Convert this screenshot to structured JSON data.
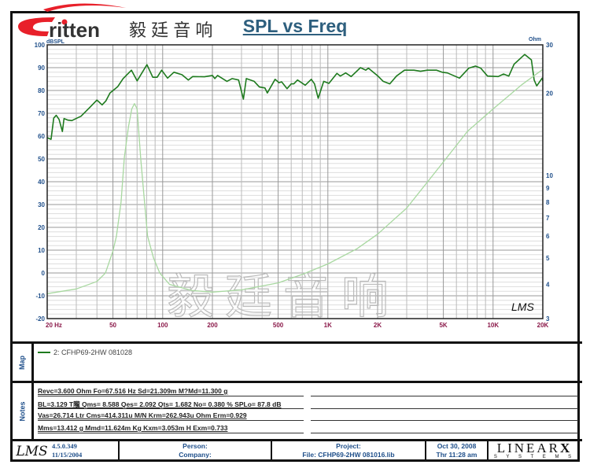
{
  "logo": {
    "brand": "ritten",
    "chinese": "毅 廷 音 响",
    "accent": "#e8202a"
  },
  "watermark": "毅廷音响",
  "title": "SPL vs Freq",
  "chart_data": {
    "type": "line",
    "title": "SPL vs Freq",
    "xscale": "log",
    "xlim": [
      20,
      20000
    ],
    "x_ticks": [
      "20  Hz",
      "50",
      "100",
      "200",
      "500",
      "1K",
      "2K",
      "5K",
      "10K",
      "20K"
    ],
    "x_tick_values": [
      20,
      50,
      100,
      200,
      500,
      1000,
      2000,
      5000,
      10000,
      20000
    ],
    "y_left": {
      "label": "dBSPL",
      "ylim": [
        -20,
        100
      ],
      "ticks": [
        100,
        90,
        80,
        70,
        60,
        50,
        40,
        30,
        20,
        10,
        0,
        -10,
        -20
      ]
    },
    "y_right": {
      "label": "Ohm",
      "scale": "log",
      "ylim": [
        3,
        30
      ],
      "ticks": [
        30,
        20,
        10,
        9,
        8,
        7,
        6,
        5,
        4,
        3
      ]
    },
    "grid": true,
    "series": [
      {
        "axis": "left",
        "color": "#1e7a1e",
        "points": [
          [
            20,
            59.3
          ],
          [
            21.1,
            58.6
          ],
          [
            21.9,
            67.9
          ],
          [
            22.7,
            69.1
          ],
          [
            23.6,
            67.3
          ],
          [
            24.7,
            62
          ],
          [
            25.3,
            67.7
          ],
          [
            26.7,
            67
          ],
          [
            28.2,
            66.8
          ],
          [
            30.5,
            68
          ],
          [
            32,
            68.7
          ],
          [
            35.9,
            72.3
          ],
          [
            40,
            75.8
          ],
          [
            43,
            73.7
          ],
          [
            45.3,
            75.4
          ],
          [
            48,
            78.9
          ],
          [
            53.5,
            81.7
          ],
          [
            57.6,
            85.2
          ],
          [
            64.7,
            88.9
          ],
          [
            70,
            84.2
          ],
          [
            80.3,
            91.3
          ],
          [
            87.1,
            85.8
          ],
          [
            92.6,
            85.8
          ],
          [
            98.6,
            88.9
          ],
          [
            107,
            85.4
          ],
          [
            117,
            88
          ],
          [
            131,
            86.9
          ],
          [
            143,
            84.6
          ],
          [
            152,
            86.1
          ],
          [
            179,
            86
          ],
          [
            200,
            86.6
          ],
          [
            207,
            85.2
          ],
          [
            215,
            86.6
          ],
          [
            245,
            84
          ],
          [
            263,
            85.2
          ],
          [
            288,
            84.6
          ],
          [
            308,
            76.2
          ],
          [
            321,
            85.2
          ],
          [
            358,
            84
          ],
          [
            385,
            81.5
          ],
          [
            416,
            81.1
          ],
          [
            430,
            78.9
          ],
          [
            479,
            84.9
          ],
          [
            506,
            83.4
          ],
          [
            525,
            83.8
          ],
          [
            566,
            80.8
          ],
          [
            600,
            82.9
          ],
          [
            622,
            82.9
          ],
          [
            655,
            84.6
          ],
          [
            729,
            82.3
          ],
          [
            794,
            84.9
          ],
          [
            830,
            82.9
          ],
          [
            874,
            76.6
          ],
          [
            944,
            84
          ],
          [
            1015,
            83.1
          ],
          [
            1134,
            87.5
          ],
          [
            1190,
            86.3
          ],
          [
            1282,
            87.7
          ],
          [
            1384,
            86.1
          ],
          [
            1574,
            90
          ],
          [
            1695,
            88.9
          ],
          [
            1760,
            89.8
          ],
          [
            2010,
            86.3
          ],
          [
            2163,
            84
          ],
          [
            2370,
            82.9
          ],
          [
            2602,
            86.3
          ],
          [
            2909,
            88.9
          ],
          [
            3320,
            88.9
          ],
          [
            3641,
            88.4
          ],
          [
            3997,
            88.9
          ],
          [
            4557,
            88.9
          ],
          [
            4910,
            88
          ],
          [
            5290,
            87.7
          ],
          [
            6262,
            85.4
          ],
          [
            7135,
            89.8
          ],
          [
            7820,
            90.7
          ],
          [
            8420,
            89.8
          ],
          [
            9250,
            86.3
          ],
          [
            10740,
            86.1
          ],
          [
            11570,
            87.2
          ],
          [
            12460,
            86.3
          ],
          [
            13400,
            91.5
          ],
          [
            15540,
            95.8
          ],
          [
            17060,
            93.4
          ],
          [
            17720,
            84.6
          ],
          [
            18390,
            82
          ],
          [
            19820,
            85.4
          ],
          [
            20000,
            84.2
          ]
        ]
      },
      {
        "axis": "right",
        "color": "#a8d8a0",
        "points": [
          [
            20,
            3.7
          ],
          [
            30,
            3.85
          ],
          [
            40,
            4.1
          ],
          [
            45,
            4.4
          ],
          [
            50,
            5.3
          ],
          [
            52.5,
            6
          ],
          [
            56,
            8
          ],
          [
            58.6,
            11.6
          ],
          [
            62,
            15
          ],
          [
            65,
            17.5
          ],
          [
            67.5,
            18.3
          ],
          [
            70,
            17.5
          ],
          [
            73.6,
            11.6
          ],
          [
            77,
            8.5
          ],
          [
            81,
            6
          ],
          [
            88,
            5
          ],
          [
            96,
            4.4
          ],
          [
            110,
            4.0
          ],
          [
            150,
            3.8
          ],
          [
            200,
            3.75
          ],
          [
            300,
            3.82
          ],
          [
            500,
            4.05
          ],
          [
            700,
            4.35
          ],
          [
            1000,
            4.75
          ],
          [
            1500,
            5.4
          ],
          [
            2000,
            6.1
          ],
          [
            3000,
            7.6
          ],
          [
            5000,
            11.2
          ],
          [
            7000,
            14.5
          ],
          [
            10000,
            17.5
          ],
          [
            15000,
            21.5
          ],
          [
            20000,
            24.4
          ]
        ]
      }
    ]
  },
  "chart_mark": "LMS",
  "map": {
    "label": "Map",
    "legend": "2: CFHP69-2HW    081028"
  },
  "notes": {
    "label": "Notes",
    "lines": [
      "Revc=3.600 Ohm  Fo=67.516 Hz  Sd=21.309m M?Md=11.300 g",
      "BL=3.129 T隴  Qms= 8.588  Qes= 2.092  Qts= 1.682  No= 0.380 %  SPLo= 87.8 dB",
      "Vas=26.714 Ltr  Cms=414.311u M/N  Krm=262.943u Ohm  Erm=0.929",
      "Mms=13.412 g  Mmd=11.624m Kg  Kxm=3.053m H  Exm=0.733"
    ]
  },
  "footer": {
    "lms": "LMS",
    "version": "4.5.0.349",
    "version_date": "11/15/2004",
    "person": "Person:",
    "company": "Company:",
    "project": "Project:",
    "file": "File: CFHP69-2HW  081016.lib",
    "date": "Oct 30, 2008",
    "time": "Thr 11:28 am",
    "brand": "LINEAR",
    "brand_x": "X",
    "brand_sub": "S Y S T E M S"
  }
}
